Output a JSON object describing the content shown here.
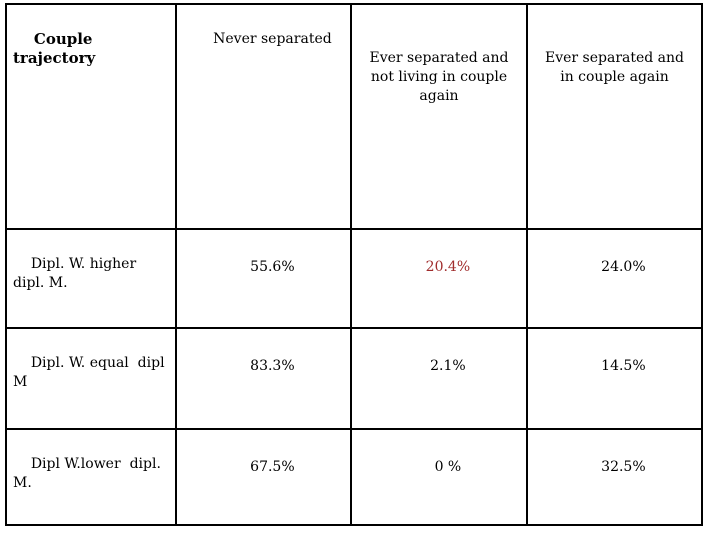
{
  "colors": {
    "background": "#ffffff",
    "table_border": "#000000",
    "text": "#000000",
    "highlight_red": "#a02c2c"
  },
  "table": {
    "columns": [
      "Couple trajectory",
      "Never separated",
      "Ever separated and not living in couple again",
      "Ever separated and  in couple again"
    ],
    "rows": [
      {
        "label": "Dipl. W. higher dipl. M.",
        "values": [
          "55.6%",
          "20.4%",
          "24.0%"
        ]
      },
      {
        "label": "Dipl. W. equal  dipl M",
        "values": [
          "83.3%",
          "2.1%",
          "14.5%"
        ]
      },
      {
        "label": "Dipl W.lower  dipl. M.",
        "values": [
          "67.5%",
          "0 %",
          "32.5%"
        ]
      }
    ]
  }
}
